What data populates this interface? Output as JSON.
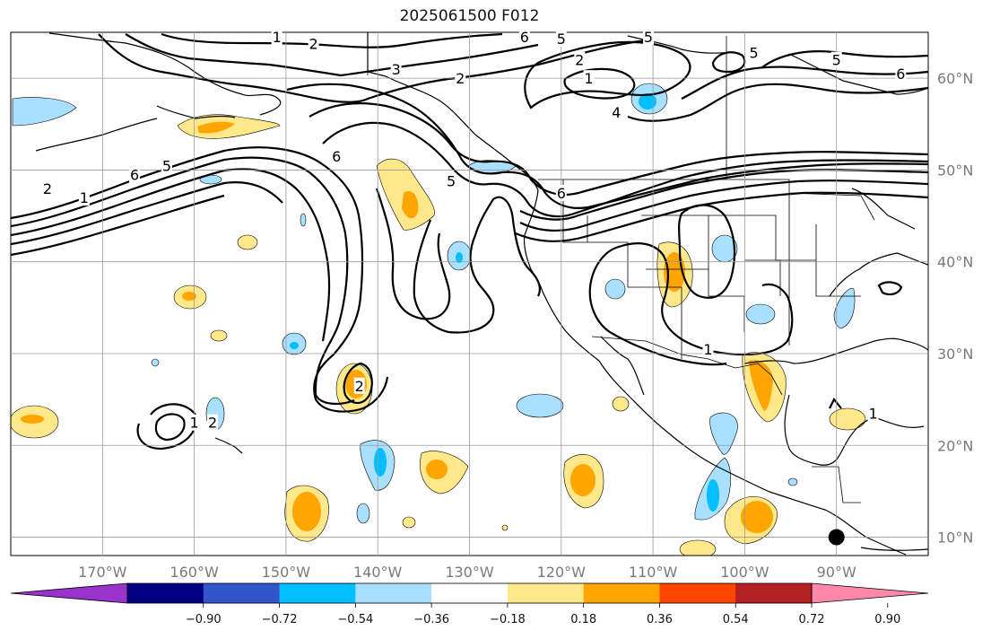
{
  "title": "2025061500 F012",
  "map": {
    "lon_range": [
      -180,
      -80
    ],
    "lat_range": [
      8,
      65
    ],
    "lon_ticks": [
      {
        "lon": -170,
        "label": "170°W"
      },
      {
        "lon": -160,
        "label": "160°W"
      },
      {
        "lon": -150,
        "label": "150°W"
      },
      {
        "lon": -140,
        "label": "140°W"
      },
      {
        "lon": -130,
        "label": "130°W"
      },
      {
        "lon": -120,
        "label": "120°W"
      },
      {
        "lon": -110,
        "label": "110°W"
      },
      {
        "lon": -100,
        "label": "100°W"
      },
      {
        "lon": -90,
        "label": "90°W"
      }
    ],
    "lat_ticks": [
      {
        "lat": 10,
        "label": "10°N"
      },
      {
        "lat": 20,
        "label": "20°N"
      },
      {
        "lat": 30,
        "label": "30°N"
      },
      {
        "lat": 40,
        "label": "40°N"
      },
      {
        "lat": 50,
        "label": "50°N"
      },
      {
        "lat": 60,
        "label": "60°N"
      }
    ],
    "grid": true,
    "marker": {
      "lon": -90,
      "lat": 10,
      "color": "#000000"
    }
  },
  "contour_labels": [
    {
      "text": "1",
      "lon": -160,
      "lat": 22.5
    },
    {
      "text": "2",
      "lon": -158,
      "lat": 22.5
    },
    {
      "text": "2",
      "lon": -142,
      "lat": 26.5
    },
    {
      "text": "1",
      "lon": -172,
      "lat": 47
    },
    {
      "text": "2",
      "lon": -176,
      "lat": 48
    },
    {
      "text": "6",
      "lon": -166.5,
      "lat": 49.5
    },
    {
      "text": "5",
      "lon": -163,
      "lat": 50.5
    },
    {
      "text": "6",
      "lon": -144.5,
      "lat": 51.5
    },
    {
      "text": "5",
      "lon": -132,
      "lat": 48.8
    },
    {
      "text": "6",
      "lon": -120,
      "lat": 47.5
    },
    {
      "text": "1",
      "lon": -151,
      "lat": 64.5
    },
    {
      "text": "2",
      "lon": -147,
      "lat": 63.8
    },
    {
      "text": "3",
      "lon": -138,
      "lat": 61
    },
    {
      "text": "6",
      "lon": -124,
      "lat": 64.5
    },
    {
      "text": "5",
      "lon": -120,
      "lat": 64.3
    },
    {
      "text": "5",
      "lon": -110.5,
      "lat": 64.5
    },
    {
      "text": "2",
      "lon": -118,
      "lat": 62
    },
    {
      "text": "1",
      "lon": -117,
      "lat": 60
    },
    {
      "text": "4",
      "lon": -114,
      "lat": 56.3
    },
    {
      "text": "5",
      "lon": -99,
      "lat": 62.8
    },
    {
      "text": "5",
      "lon": -90,
      "lat": 62
    },
    {
      "text": "6",
      "lon": -83,
      "lat": 60.5
    },
    {
      "text": "1",
      "lon": -86,
      "lat": 23.5
    },
    {
      "text": "1",
      "lon": -104,
      "lat": 30.5
    },
    {
      "text": "2",
      "lon": -131,
      "lat": 60
    }
  ],
  "colorbar": {
    "colors": [
      "#9933cc",
      "#000080",
      "#3355cc",
      "#00bfff",
      "#aae0ff",
      "#ffffff",
      "#ffe88a",
      "#ffa500",
      "#ff4500",
      "#b22222",
      "#ff88aa"
    ],
    "ticks": [
      "−0.90",
      "−0.72",
      "−0.54",
      "−0.36",
      "−0.18",
      "0.18",
      "0.36",
      "0.54",
      "0.72",
      "0.90"
    ]
  }
}
